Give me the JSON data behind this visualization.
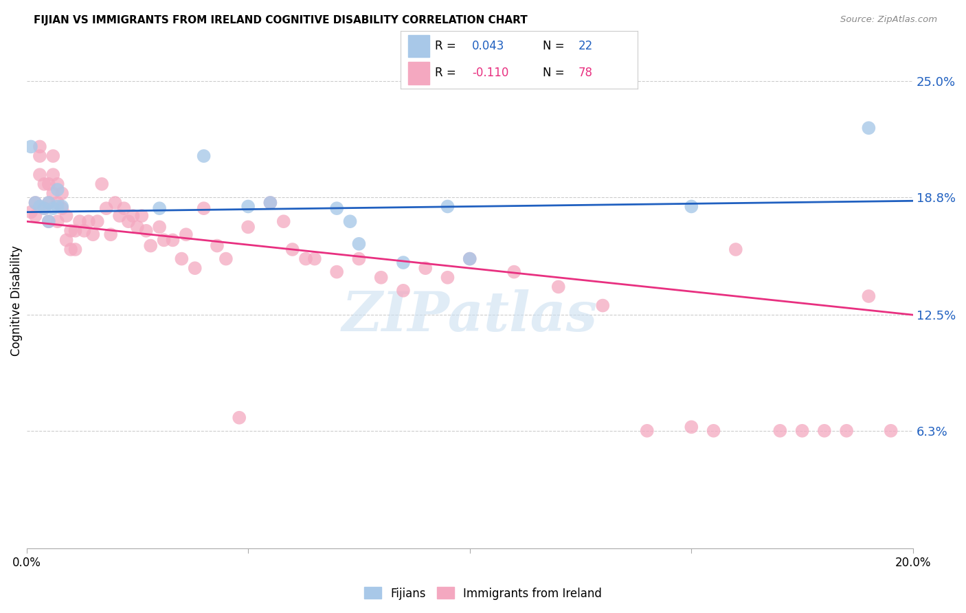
{
  "title": "FIJIAN VS IMMIGRANTS FROM IRELAND COGNITIVE DISABILITY CORRELATION CHART",
  "source": "Source: ZipAtlas.com",
  "ylabel": "Cognitive Disability",
  "ytick_labels": [
    "25.0%",
    "18.8%",
    "12.5%",
    "6.3%"
  ],
  "ytick_values": [
    0.25,
    0.188,
    0.125,
    0.063
  ],
  "xmin": 0.0,
  "xmax": 0.2,
  "ymin": 0.0,
  "ymax": 0.265,
  "fijian_color": "#a8c8e8",
  "ireland_color": "#f4a8c0",
  "fijian_line_color": "#2060c0",
  "ireland_line_color": "#e83080",
  "watermark": "ZIPatlas",
  "fijian_R": 0.043,
  "fijian_N": 22,
  "ireland_R": -0.11,
  "ireland_N": 78,
  "fijian_scatter_x": [
    0.001,
    0.002,
    0.003,
    0.004,
    0.005,
    0.005,
    0.006,
    0.007,
    0.007,
    0.008,
    0.03,
    0.04,
    0.05,
    0.055,
    0.07,
    0.073,
    0.075,
    0.085,
    0.095,
    0.1,
    0.15,
    0.19
  ],
  "fijian_scatter_y": [
    0.215,
    0.185,
    0.183,
    0.182,
    0.185,
    0.175,
    0.182,
    0.192,
    0.183,
    0.183,
    0.182,
    0.21,
    0.183,
    0.185,
    0.182,
    0.175,
    0.163,
    0.153,
    0.183,
    0.155,
    0.183,
    0.225
  ],
  "ireland_scatter_x": [
    0.001,
    0.002,
    0.002,
    0.003,
    0.003,
    0.003,
    0.004,
    0.004,
    0.005,
    0.005,
    0.005,
    0.006,
    0.006,
    0.006,
    0.007,
    0.007,
    0.007,
    0.008,
    0.008,
    0.009,
    0.009,
    0.01,
    0.01,
    0.011,
    0.011,
    0.012,
    0.013,
    0.014,
    0.015,
    0.016,
    0.017,
    0.018,
    0.019,
    0.02,
    0.021,
    0.022,
    0.023,
    0.024,
    0.025,
    0.026,
    0.027,
    0.028,
    0.03,
    0.031,
    0.033,
    0.035,
    0.036,
    0.038,
    0.04,
    0.043,
    0.045,
    0.048,
    0.05,
    0.055,
    0.058,
    0.06,
    0.063,
    0.065,
    0.07,
    0.075,
    0.08,
    0.085,
    0.09,
    0.095,
    0.1,
    0.11,
    0.12,
    0.13,
    0.14,
    0.15,
    0.155,
    0.16,
    0.17,
    0.175,
    0.18,
    0.185,
    0.19,
    0.195
  ],
  "ireland_scatter_y": [
    0.18,
    0.185,
    0.178,
    0.215,
    0.21,
    0.2,
    0.195,
    0.182,
    0.195,
    0.185,
    0.175,
    0.21,
    0.2,
    0.19,
    0.195,
    0.185,
    0.175,
    0.19,
    0.182,
    0.178,
    0.165,
    0.17,
    0.16,
    0.17,
    0.16,
    0.175,
    0.17,
    0.175,
    0.168,
    0.175,
    0.195,
    0.182,
    0.168,
    0.185,
    0.178,
    0.182,
    0.175,
    0.178,
    0.172,
    0.178,
    0.17,
    0.162,
    0.172,
    0.165,
    0.165,
    0.155,
    0.168,
    0.15,
    0.182,
    0.162,
    0.155,
    0.07,
    0.172,
    0.185,
    0.175,
    0.16,
    0.155,
    0.155,
    0.148,
    0.155,
    0.145,
    0.138,
    0.15,
    0.145,
    0.155,
    0.148,
    0.14,
    0.13,
    0.063,
    0.065,
    0.063,
    0.16,
    0.063,
    0.063,
    0.063,
    0.063,
    0.135,
    0.063
  ],
  "fijian_trend_x": [
    0.0,
    0.2
  ],
  "fijian_trend_y": [
    0.18,
    0.186
  ],
  "ireland_trend_x": [
    0.0,
    0.2
  ],
  "ireland_trend_y": [
    0.175,
    0.125
  ]
}
